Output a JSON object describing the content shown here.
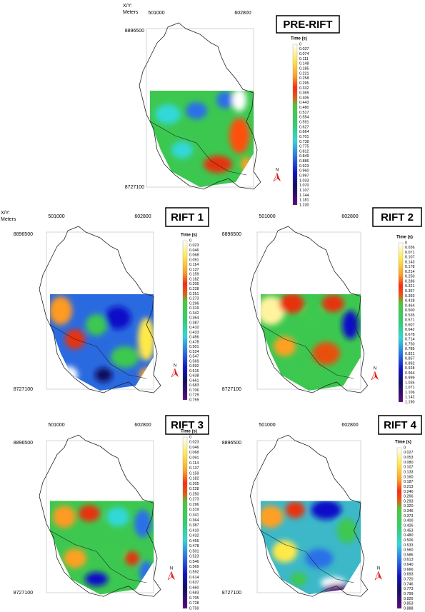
{
  "panels": [
    {
      "title": "PRE-RIFT",
      "xy_label": [
        "X/Y:",
        "Meters"
      ],
      "x_labels": [
        "501000",
        "602800"
      ],
      "y_labels": [
        "8896500",
        "8727100"
      ],
      "legend_title": "Time (s)",
      "north": "N",
      "legend_labels": [
        "0",
        "0.037",
        "0.074",
        "0.111",
        "0.148",
        "0.185",
        "0.221",
        "0.258",
        "0.295",
        "0.332",
        "0.369",
        "0.406",
        "0.443",
        "0.480",
        "0.517",
        "0.554",
        "0.591",
        "0.627",
        "0.664",
        "0.701",
        "0.738",
        "0.775",
        "0.812",
        "0.849",
        "0.886",
        "0.923",
        "0.960",
        "0.997",
        "1.033",
        "1.070",
        "1.107",
        "1.144",
        "1.181",
        "1.230"
      ]
    },
    {
      "title": "RIFT 1",
      "xy_label": [
        "X/Y:",
        "Meters"
      ],
      "x_labels": [
        "501000",
        "602800"
      ],
      "y_labels": [
        "8896500",
        "8727100"
      ],
      "legend_title": "Time (s)",
      "north": "N",
      "legend_labels": [
        "0",
        "0.023",
        "0.046",
        "0.068",
        "0.091",
        "0.114",
        "0.137",
        "0.159",
        "0.182",
        "0.205",
        "0.228",
        "0.251",
        "0.273",
        "0.296",
        "0.319",
        "0.342",
        "0.364",
        "0.387",
        "0.410",
        "0.433",
        "0.456",
        "0.478",
        "0.501",
        "0.524",
        "0.547",
        "0.569",
        "0.592",
        "0.615",
        "0.638",
        "0.661",
        "0.683",
        "0.706",
        "0.729",
        "0.759"
      ]
    },
    {
      "title": "RIFT 2",
      "x_labels": [
        "501000",
        "602800"
      ],
      "y_labels": [
        "8896500",
        "8727100"
      ],
      "legend_title": "Time (s)",
      "north": "N",
      "legend_labels": [
        "0",
        "0.036",
        "0.071",
        "0.107",
        "0.143",
        "0.178",
        "0.214",
        "0.250",
        "0.286",
        "0.321",
        "0.357",
        "0.393",
        "0.428",
        "0.464",
        "0.500",
        "0.535",
        "0.571",
        "0.607",
        "0.642",
        "0.678",
        "0.714",
        "0.750",
        "0.785",
        "0.821",
        "0.857",
        "0.892",
        "0.928",
        "0.964",
        "0.999",
        "1.035",
        "1.071",
        "1.106",
        "1.142",
        "1.190"
      ]
    },
    {
      "title": "RIFT 3",
      "x_labels": [
        "501000",
        "602800"
      ],
      "y_labels": [
        "8896500",
        "8727100"
      ],
      "legend_title": "Time (s)",
      "north": "N",
      "legend_labels": [
        "0",
        "0.023",
        "0.046",
        "0.068",
        "0.091",
        "0.114",
        "0.137",
        "0.159",
        "0.182",
        "0.205",
        "0.228",
        "0.250",
        "0.273",
        "0.296",
        "0.319",
        "0.341",
        "0.364",
        "0.387",
        "0.410",
        "0.432",
        "0.455",
        "0.478",
        "0.501",
        "0.523",
        "0.546",
        "0.569",
        "0.592",
        "0.614",
        "0.637",
        "0.660",
        "0.683",
        "0.705",
        "0.728",
        "0.759"
      ]
    },
    {
      "title": "RIFT 4",
      "x_labels": [
        "501000",
        "602800"
      ],
      "y_labels": [
        "8896500",
        "8727100"
      ],
      "legend_title": "Time (s)",
      "north": "N",
      "legend_labels": [
        "0",
        "0.027",
        "0.053",
        "0.080",
        "0.107",
        "0.133",
        "0.160",
        "0.187",
        "0.213",
        "0.240",
        "0.266",
        "0.293",
        "0.320",
        "0.346",
        "0.373",
        "0.400",
        "0.426",
        "0.453",
        "0.480",
        "0.506",
        "0.533",
        "0.560",
        "0.586",
        "0.613",
        "0.640",
        "0.666",
        "0.693",
        "0.720",
        "0.746",
        "0.773",
        "0.799",
        "0.826",
        "0.853",
        "0.888"
      ]
    }
  ]
}
